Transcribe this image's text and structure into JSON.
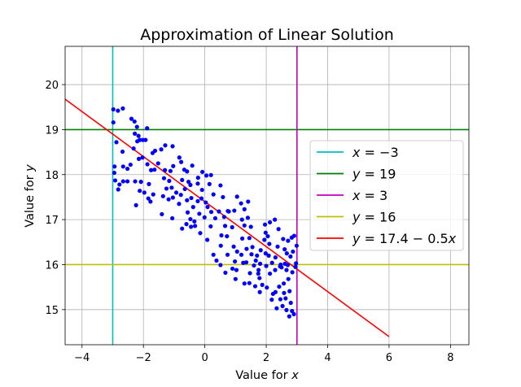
{
  "chart_data": {
    "type": "scatter",
    "title": "Approximation of Linear Solution",
    "xlabel": "Value for x",
    "ylabel": "Value for y",
    "xlim": [
      -4.55,
      8.6
    ],
    "ylim": [
      14.22,
      20.85
    ],
    "xticks": [
      -4,
      -2,
      0,
      2,
      4,
      6,
      8
    ],
    "yticks": [
      15,
      16,
      17,
      18,
      19,
      20
    ],
    "xtick_labels": [
      "−4",
      "−2",
      "0",
      "2",
      "4",
      "6",
      "8"
    ],
    "ytick_labels": [
      "15",
      "16",
      "17",
      "18",
      "19",
      "20"
    ],
    "grid": true,
    "legend_position": "right",
    "series": [
      {
        "name": "x = −3",
        "kind": "vline",
        "x": -3,
        "color": "#00bfbf"
      },
      {
        "name": "y = 19",
        "kind": "hline",
        "y": 19,
        "color": "#008000"
      },
      {
        "name": "x = 3",
        "kind": "vline",
        "x": 3,
        "color": "#bf00bf"
      },
      {
        "name": "y = 16",
        "kind": "hline",
        "y": 16,
        "color": "#bfbf00"
      },
      {
        "name": "y = 17.4 − 0.5x",
        "kind": "line",
        "x": [
          -4.55,
          6.0
        ],
        "y": [
          19.675,
          14.4
        ],
        "color": "#ff0000"
      }
    ],
    "scatter_color": "#0000ff",
    "scatter_points": [
      [
        -2.98,
        19.45
      ],
      [
        -2.83,
        19.42
      ],
      [
        -2.67,
        19.47
      ],
      [
        -2.98,
        19.16
      ],
      [
        -2.88,
        18.72
      ],
      [
        -2.68,
        18.51
      ],
      [
        -2.94,
        18.18
      ],
      [
        -2.95,
        18.04
      ],
      [
        -2.92,
        17.87
      ],
      [
        -2.78,
        17.78
      ],
      [
        -2.66,
        17.85
      ],
      [
        -2.52,
        17.85
      ],
      [
        -2.82,
        17.67
      ],
      [
        -2.52,
        18.13
      ],
      [
        -2.66,
        18.18
      ],
      [
        -2.42,
        18.22
      ],
      [
        -2.39,
        19.24
      ],
      [
        -2.29,
        19.18
      ],
      [
        -2.21,
        19.06
      ],
      [
        -2.28,
        18.91
      ],
      [
        -2.16,
        18.86
      ],
      [
        -2.12,
        18.77
      ],
      [
        -2.2,
        18.74
      ],
      [
        -2.02,
        18.77
      ],
      [
        -1.93,
        18.77
      ],
      [
        -1.88,
        19.03
      ],
      [
        -2.32,
        18.58
      ],
      [
        -2.15,
        18.35
      ],
      [
        -2.03,
        18.38
      ],
      [
        -2.27,
        17.85
      ],
      [
        -2.08,
        17.84
      ],
      [
        -2.12,
        17.64
      ],
      [
        -2.24,
        17.32
      ],
      [
        -1.97,
        17.6
      ],
      [
        -1.82,
        17.79
      ],
      [
        -1.84,
        17.47
      ],
      [
        -1.68,
        17.56
      ],
      [
        -1.77,
        17.4
      ],
      [
        -1.75,
        18.1
      ],
      [
        -1.87,
        18.23
      ],
      [
        -1.64,
        18.11
      ],
      [
        -1.52,
        18.25
      ],
      [
        -1.7,
        18.48
      ],
      [
        -1.62,
        18.53
      ],
      [
        -1.42,
        18.56
      ],
      [
        -1.29,
        18.65
      ],
      [
        -1.3,
        18.1
      ],
      [
        -1.12,
        18.08
      ],
      [
        -1.03,
        18.19
      ],
      [
        -1.33,
        17.92
      ],
      [
        -1.16,
        17.86
      ],
      [
        -1.08,
        17.71
      ],
      [
        -1.25,
        17.69
      ],
      [
        -1.36,
        17.52
      ],
      [
        -1.18,
        17.45
      ],
      [
        -1.04,
        17.49
      ],
      [
        -1.4,
        17.12
      ],
      [
        -1.06,
        17.03
      ],
      [
        -0.93,
        17.6
      ],
      [
        -0.84,
        17.35
      ],
      [
        -0.78,
        17.55
      ],
      [
        -1.05,
        18.63
      ],
      [
        -0.83,
        18.38
      ],
      [
        -0.77,
        18.28
      ],
      [
        -0.67,
        18.11
      ],
      [
        -0.58,
        18.07
      ],
      [
        -0.41,
        18.2
      ],
      [
        -0.74,
        17.88
      ],
      [
        -0.53,
        17.84
      ],
      [
        -0.47,
        17.77
      ],
      [
        -0.65,
        17.68
      ],
      [
        -0.58,
        17.43
      ],
      [
        -0.44,
        17.48
      ],
      [
        -0.38,
        17.28
      ],
      [
        -0.56,
        17.16
      ],
      [
        -0.47,
        17.01
      ],
      [
        -0.34,
        16.96
      ],
      [
        -0.74,
        16.8
      ],
      [
        -0.6,
        16.9
      ],
      [
        -0.45,
        16.84
      ],
      [
        -0.32,
        16.86
      ],
      [
        -0.15,
        16.7
      ],
      [
        -0.23,
        17.8
      ],
      [
        -0.09,
        17.66
      ],
      [
        -0.11,
        17.47
      ],
      [
        -0.23,
        17.41
      ],
      [
        0.03,
        17.38
      ],
      [
        -0.18,
        17.13
      ],
      [
        -0.01,
        17.05
      ],
      [
        -0.22,
        17.93
      ],
      [
        -0.08,
        18.06
      ],
      [
        0.05,
        17.98
      ],
      [
        0.2,
        17.99
      ],
      [
        0.15,
        17.79
      ],
      [
        0.28,
        17.56
      ],
      [
        0.09,
        17.28
      ],
      [
        0.21,
        17.17
      ],
      [
        0.34,
        17.03
      ],
      [
        0.46,
        17.18
      ],
      [
        0.19,
        16.85
      ],
      [
        0.08,
        16.55
      ],
      [
        0.28,
        16.22
      ],
      [
        0.51,
        17.76
      ],
      [
        0.59,
        17.5
      ],
      [
        0.75,
        17.19
      ],
      [
        0.63,
        17.06
      ],
      [
        0.78,
        17.18
      ],
      [
        0.96,
        17.2
      ],
      [
        0.66,
        16.86
      ],
      [
        0.54,
        16.65
      ],
      [
        0.72,
        16.63
      ],
      [
        0.89,
        16.83
      ],
      [
        0.94,
        16.4
      ],
      [
        0.52,
        16.42
      ],
      [
        0.38,
        16.09
      ],
      [
        0.51,
        15.99
      ],
      [
        0.74,
        16.22
      ],
      [
        1.05,
        16.29
      ],
      [
        0.98,
        16.07
      ],
      [
        1.19,
        16.22
      ],
      [
        0.9,
        15.91
      ],
      [
        1.03,
        15.88
      ],
      [
        0.67,
        15.82
      ],
      [
        1.0,
        15.68
      ],
      [
        1.05,
        17.51
      ],
      [
        1.18,
        17.36
      ],
      [
        1.29,
        17.23
      ],
      [
        1.41,
        17.4
      ],
      [
        1.21,
        17.0
      ],
      [
        1.29,
        16.87
      ],
      [
        1.4,
        17.04
      ],
      [
        1.5,
        16.84
      ],
      [
        1.45,
        16.59
      ],
      [
        1.55,
        16.39
      ],
      [
        1.22,
        16.58
      ],
      [
        1.36,
        16.35
      ],
      [
        1.52,
        16.23
      ],
      [
        1.7,
        16.2
      ],
      [
        1.25,
        16.04
      ],
      [
        1.35,
        16.05
      ],
      [
        1.6,
        15.98
      ],
      [
        1.47,
        15.81
      ],
      [
        1.75,
        15.88
      ],
      [
        1.29,
        15.58
      ],
      [
        1.45,
        15.59
      ],
      [
        1.64,
        15.52
      ],
      [
        1.78,
        15.7
      ],
      [
        1.87,
        15.55
      ],
      [
        1.79,
        15.39
      ],
      [
        1.66,
        16.09
      ],
      [
        1.82,
        16.32
      ],
      [
        1.98,
        16.25
      ],
      [
        1.96,
        16.89
      ],
      [
        2.05,
        16.63
      ],
      [
        1.94,
        16.55
      ],
      [
        2.1,
        16.46
      ],
      [
        2.08,
        16.2
      ],
      [
        2.0,
        15.97
      ],
      [
        2.19,
        16.04
      ],
      [
        2.12,
        15.8
      ],
      [
        2.29,
        15.88
      ],
      [
        2.02,
        15.49
      ],
      [
        2.22,
        15.35
      ],
      [
        2.18,
        15.22
      ],
      [
        2.3,
        15.39
      ],
      [
        2.42,
        15.51
      ],
      [
        2.34,
        15.03
      ],
      [
        2.53,
        15.08
      ],
      [
        2.37,
        16.4
      ],
      [
        2.55,
        16.57
      ],
      [
        2.47,
        16.0
      ],
      [
        2.61,
        16.02
      ],
      [
        2.57,
        15.58
      ],
      [
        2.63,
        15.25
      ],
      [
        2.72,
        15.68
      ],
      [
        2.76,
        15.41
      ],
      [
        2.8,
        15.15
      ],
      [
        2.84,
        14.97
      ],
      [
        2.9,
        14.9
      ],
      [
        2.71,
        16.53
      ],
      [
        2.83,
        16.6
      ],
      [
        2.91,
        16.64
      ],
      [
        2.67,
        16.25
      ],
      [
        2.79,
        16.18
      ],
      [
        2.99,
        16.42
      ],
      [
        2.95,
        15.95
      ],
      [
        2.97,
        16.03
      ],
      [
        2.85,
        15.83
      ],
      [
        2.75,
        14.85
      ],
      [
        2.7,
        15.99
      ],
      [
        2.5,
        15.94
      ],
      [
        2.66,
        15.88
      ],
      [
        1.8,
        16.02
      ],
      [
        1.74,
        15.8
      ],
      [
        2.4,
        16.79
      ],
      [
        2.28,
        17.0
      ],
      [
        2.12,
        16.94
      ],
      [
        1.98,
        16.71
      ],
      [
        2.87,
        16.29
      ],
      [
        2.6,
        16.34
      ],
      [
        2.45,
        15.96
      ],
      [
        2.3,
        16.16
      ],
      [
        2.58,
        15.37
      ],
      [
        2.46,
        15.23
      ],
      [
        2.66,
        14.99
      ]
    ]
  }
}
